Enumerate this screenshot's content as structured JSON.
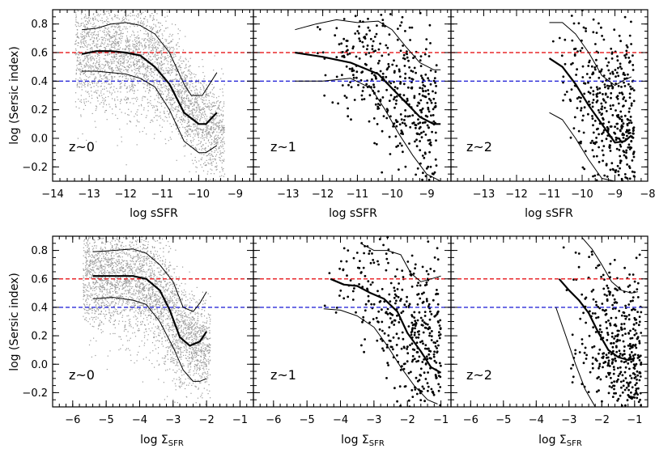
{
  "chart_data": {
    "type": "scatter",
    "ylabel": "log (Sersic index)",
    "ylim": [
      -0.3,
      0.9
    ],
    "yticks": [
      -0.2,
      0.0,
      0.2,
      0.4,
      0.6,
      0.8
    ],
    "ytick_labels": [
      "−0.2",
      "0.0",
      "0.2",
      "0.4",
      "0.6",
      "0.8"
    ],
    "reference_lines": [
      {
        "y": 0.6,
        "color": "#e8282c",
        "style": "dashed"
      },
      {
        "y": 0.4,
        "color": "#2a2ad8",
        "style": "dashed"
      }
    ],
    "rows": [
      {
        "xlabel": "log sSFR",
        "xlabel_plain": "log sSFR",
        "panels": [
          {
            "label": "z~0",
            "xlim": [
              -14,
              -8.5
            ],
            "xticks": [
              -14,
              -13,
              -12,
              -11,
              -10,
              -9
            ],
            "xtick_labels": [
              "−14",
              "−13",
              "−12",
              "−11",
              "−10",
              "−9"
            ],
            "scatter_style": "dense-gray",
            "cloud_trend": {
              "x": [
                -13.5,
                -12.5,
                -11.5,
                -11,
                -10.5,
                -10,
                -9.5,
                -9.2
              ],
              "y": [
                0.6,
                0.6,
                0.58,
                0.5,
                0.32,
                0.12,
                0.05,
                0.04
              ]
            },
            "cloud_spread": [
              0.22,
              0.2,
              0.2,
              0.2,
              0.18,
              0.16,
              0.16,
              0.16
            ],
            "x_extent": [
              -13.4,
              -9.3
            ],
            "curves": [
              {
                "name": "median",
                "weight": "thick",
                "x": [
                  -13.2,
                  -12.8,
                  -12.4,
                  -12.0,
                  -11.6,
                  -11.2,
                  -10.8,
                  -10.4,
                  -10.0,
                  -9.8,
                  -9.5
                ],
                "y": [
                  0.59,
                  0.61,
                  0.61,
                  0.6,
                  0.58,
                  0.5,
                  0.38,
                  0.18,
                  0.1,
                  0.1,
                  0.18
                ]
              },
              {
                "name": "upper",
                "weight": "thin",
                "x": [
                  -13.2,
                  -12.8,
                  -12.4,
                  -12.0,
                  -11.6,
                  -11.2,
                  -10.8,
                  -10.4,
                  -10.2,
                  -9.9,
                  -9.5
                ],
                "y": [
                  0.76,
                  0.77,
                  0.8,
                  0.81,
                  0.79,
                  0.73,
                  0.6,
                  0.38,
                  0.3,
                  0.3,
                  0.46
                ]
              },
              {
                "name": "lower",
                "weight": "thin",
                "x": [
                  -13.2,
                  -12.8,
                  -12.4,
                  -12.0,
                  -11.6,
                  -11.2,
                  -10.8,
                  -10.4,
                  -10.0,
                  -9.8,
                  -9.5
                ],
                "y": [
                  0.47,
                  0.47,
                  0.46,
                  0.45,
                  0.42,
                  0.36,
                  0.2,
                  -0.02,
                  -0.1,
                  -0.1,
                  -0.05
                ]
              }
            ]
          },
          {
            "label": "z~1",
            "xlim": [
              -14,
              -8.3
            ],
            "xticks": [
              -13,
              -12,
              -11,
              -10,
              -9
            ],
            "xtick_labels": [
              "−13",
              "−12",
              "−11",
              "−10",
              "−9"
            ],
            "scatter_style": "black-dots",
            "cloud_trend": {
              "x": [
                -12.5,
                -11.5,
                -10.5,
                -10,
                -9.5,
                -9,
                -8.7
              ],
              "y": [
                0.58,
                0.55,
                0.5,
                0.35,
                0.2,
                0.15,
                0.15
              ]
            },
            "cloud_spread": [
              0.15,
              0.18,
              0.22,
              0.28,
              0.3,
              0.3,
              0.3
            ],
            "x_extent": [
              -12.5,
              -8.7
            ],
            "curves": [
              {
                "name": "median",
                "weight": "thick",
                "x": [
                  -12.8,
                  -12.0,
                  -11.2,
                  -10.4,
                  -10.0,
                  -9.6,
                  -9.2,
                  -8.8,
                  -8.6
                ],
                "y": [
                  0.6,
                  0.57,
                  0.53,
                  0.45,
                  0.35,
                  0.25,
                  0.15,
                  0.1,
                  0.1
                ]
              },
              {
                "name": "upper",
                "weight": "thin",
                "x": [
                  -12.8,
                  -12.2,
                  -11.6,
                  -11.0,
                  -10.4,
                  -10.0,
                  -9.6,
                  -9.2,
                  -8.8,
                  -8.6
                ],
                "y": [
                  0.76,
                  0.8,
                  0.83,
                  0.81,
                  0.82,
                  0.76,
                  0.64,
                  0.53,
                  0.48,
                  0.48
                ]
              },
              {
                "name": "lower",
                "weight": "thin",
                "x": [
                  -12.8,
                  -12.0,
                  -11.2,
                  -10.6,
                  -10.2,
                  -9.8,
                  -9.4,
                  -9.0,
                  -8.6
                ],
                "y": [
                  0.4,
                  0.4,
                  0.42,
                  0.35,
                  0.2,
                  0.03,
                  -0.12,
                  -0.25,
                  -0.3
                ]
              }
            ]
          },
          {
            "label": "z~2",
            "xlim": [
              -14,
              -8
            ],
            "xticks": [
              -13,
              -12,
              -11,
              -10,
              -9,
              -8
            ],
            "xtick_labels": [
              "−13",
              "−12",
              "−11",
              "−10",
              "−9",
              "−8"
            ],
            "scatter_style": "black-dots",
            "cloud_trend": {
              "x": [
                -11,
                -10.5,
                -10,
                -9.5,
                -9,
                -8.5
              ],
              "y": [
                0.5,
                0.45,
                0.32,
                0.18,
                0.08,
                0.05
              ]
            },
            "cloud_spread": [
              0.2,
              0.25,
              0.3,
              0.3,
              0.32,
              0.32
            ],
            "x_extent": [
              -11.0,
              -8.4
            ],
            "curves": [
              {
                "name": "median",
                "weight": "thick",
                "x": [
                  -11.0,
                  -10.6,
                  -10.2,
                  -9.8,
                  -9.4,
                  -9.0,
                  -8.7,
                  -8.5
                ],
                "y": [
                  0.56,
                  0.5,
                  0.38,
                  0.23,
                  0.1,
                  -0.03,
                  -0.02,
                  0.02
                ]
              },
              {
                "name": "upper",
                "weight": "thin",
                "x": [
                  -11.0,
                  -10.6,
                  -10.2,
                  -9.8,
                  -9.4,
                  -9.0,
                  -8.7,
                  -8.5
                ],
                "y": [
                  0.81,
                  0.81,
                  0.73,
                  0.6,
                  0.44,
                  0.37,
                  0.41,
                  0.43
                ]
              },
              {
                "name": "lower",
                "weight": "thin",
                "x": [
                  -11.0,
                  -10.6,
                  -10.2,
                  -9.8,
                  -9.4,
                  -9.0,
                  -8.7
                ],
                "y": [
                  0.18,
                  0.13,
                  0.0,
                  -0.15,
                  -0.28,
                  -0.3,
                  -0.3
                ]
              }
            ]
          }
        ]
      },
      {
        "xlabel": "log ΣSFR",
        "xlabel_main": "log Σ",
        "xlabel_sub": "SFR",
        "panels": [
          {
            "label": "z~0",
            "xlim": [
              -6.6,
              -0.6
            ],
            "xticks": [
              -6,
              -5,
              -4,
              -3,
              -2,
              -1
            ],
            "xtick_labels": [
              "−6",
              "−5",
              "−4",
              "−3",
              "−2",
              "−1"
            ],
            "scatter_style": "dense-gray",
            "cloud_trend": {
              "x": [
                -5.5,
                -4.5,
                -3.8,
                -3.3,
                -2.8,
                -2.3,
                -2.0
              ],
              "y": [
                0.62,
                0.62,
                0.58,
                0.45,
                0.2,
                0.12,
                0.12
              ]
            },
            "cloud_spread": [
              0.18,
              0.2,
              0.2,
              0.22,
              0.18,
              0.16,
              0.16
            ],
            "x_extent": [
              -5.7,
              -1.9
            ],
            "curves": [
              {
                "name": "median",
                "weight": "thick",
                "x": [
                  -5.4,
                  -4.8,
                  -4.2,
                  -3.8,
                  -3.4,
                  -3.1,
                  -2.8,
                  -2.5,
                  -2.2,
                  -2.0
                ],
                "y": [
                  0.62,
                  0.62,
                  0.62,
                  0.6,
                  0.52,
                  0.38,
                  0.19,
                  0.13,
                  0.16,
                  0.23
                ]
              },
              {
                "name": "upper",
                "weight": "thin",
                "x": [
                  -5.4,
                  -4.8,
                  -4.2,
                  -3.8,
                  -3.4,
                  -3.0,
                  -2.7,
                  -2.4,
                  -2.2,
                  -2.0
                ],
                "y": [
                  0.79,
                  0.8,
                  0.81,
                  0.78,
                  0.7,
                  0.58,
                  0.4,
                  0.37,
                  0.43,
                  0.51
                ]
              },
              {
                "name": "lower",
                "weight": "thin",
                "x": [
                  -5.4,
                  -4.8,
                  -4.2,
                  -3.8,
                  -3.4,
                  -3.0,
                  -2.7,
                  -2.4,
                  -2.2,
                  -2.0
                ],
                "y": [
                  0.46,
                  0.47,
                  0.45,
                  0.42,
                  0.3,
                  0.12,
                  -0.04,
                  -0.12,
                  -0.12,
                  -0.1
                ]
              }
            ]
          },
          {
            "label": "z~1",
            "xlim": [
              -6.6,
              -0.7
            ],
            "xticks": [
              -6,
              -5,
              -4,
              -3,
              -2,
              -1
            ],
            "xtick_labels": [
              "−6",
              "−5",
              "−4",
              "−3",
              "−2",
              "−1"
            ],
            "scatter_style": "black-dots",
            "cloud_trend": {
              "x": [
                -4.5,
                -3.5,
                -2.8,
                -2.3,
                -1.8,
                -1.3,
                -1.0
              ],
              "y": [
                0.6,
                0.55,
                0.45,
                0.3,
                0.15,
                0.1,
                0.1
              ]
            },
            "cloud_spread": [
              0.15,
              0.2,
              0.25,
              0.3,
              0.32,
              0.32,
              0.3
            ],
            "x_extent": [
              -4.5,
              -1.0
            ],
            "curves": [
              {
                "name": "median",
                "weight": "thick",
                "x": [
                  -4.3,
                  -3.9,
                  -3.5,
                  -3.1,
                  -2.7,
                  -2.3,
                  -2.0,
                  -1.6,
                  -1.3,
                  -1.0
                ],
                "y": [
                  0.6,
                  0.56,
                  0.55,
                  0.5,
                  0.46,
                  0.37,
                  0.22,
                  0.09,
                  -0.02,
                  -0.06
                ]
              },
              {
                "name": "upper",
                "weight": "thin",
                "x": [
                  -3.4,
                  -3.0,
                  -2.6,
                  -2.2,
                  -1.9,
                  -1.6,
                  -1.3,
                  -1.0
                ],
                "y": [
                  0.85,
                  0.8,
                  0.8,
                  0.77,
                  0.64,
                  0.58,
                  0.6,
                  0.62
                ]
              },
              {
                "name": "lower",
                "weight": "thin",
                "x": [
                  -4.5,
                  -4.0,
                  -3.5,
                  -3.0,
                  -2.6,
                  -2.2,
                  -1.8,
                  -1.4,
                  -1.1
                ],
                "y": [
                  0.39,
                  0.38,
                  0.34,
                  0.26,
                  0.13,
                  -0.02,
                  -0.15,
                  -0.25,
                  -0.28
                ]
              }
            ]
          },
          {
            "label": "z~2",
            "xlim": [
              -6.6,
              -0.6
            ],
            "xticks": [
              -6,
              -5,
              -4,
              -3,
              -2,
              -1
            ],
            "xtick_labels": [
              "−6",
              "−5",
              "−4",
              "−3",
              "−2",
              "−1"
            ],
            "scatter_style": "black-dots",
            "cloud_trend": {
              "x": [
                -3.2,
                -2.8,
                -2.4,
                -2.0,
                -1.6,
                -1.2,
                -0.8
              ],
              "y": [
                0.45,
                0.4,
                0.3,
                0.2,
                0.12,
                0.08,
                0.05
              ]
            },
            "cloud_spread": [
              0.22,
              0.25,
              0.3,
              0.32,
              0.32,
              0.3,
              0.3
            ],
            "x_extent": [
              -3.2,
              -0.8
            ],
            "curves": [
              {
                "name": "median",
                "weight": "thick",
                "x": [
                  -3.3,
                  -3.0,
                  -2.7,
                  -2.4,
                  -2.1,
                  -1.8,
                  -1.5,
                  -1.2,
                  -1.0
                ],
                "y": [
                  0.6,
                  0.52,
                  0.45,
                  0.36,
                  0.22,
                  0.1,
                  0.05,
                  0.03,
                  0.04
                ]
              },
              {
                "name": "upper",
                "weight": "thin",
                "x": [
                  -2.6,
                  -2.3,
                  -2.0,
                  -1.7,
                  -1.4,
                  -1.1,
                  -0.9
                ],
                "y": [
                  0.89,
                  0.81,
                  0.7,
                  0.58,
                  0.52,
                  0.5,
                  0.51
                ]
              },
              {
                "name": "lower",
                "weight": "thin",
                "x": [
                  -3.4,
                  -3.1,
                  -2.8,
                  -2.5,
                  -2.2
                ],
                "y": [
                  0.4,
                  0.2,
                  0.0,
                  -0.18,
                  -0.3
                ]
              }
            ]
          }
        ]
      }
    ]
  }
}
